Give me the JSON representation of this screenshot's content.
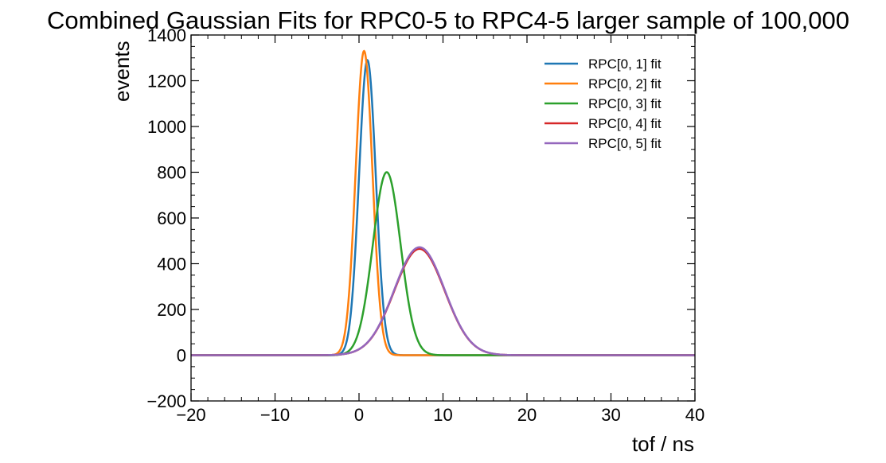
{
  "chart_data": {
    "type": "line",
    "title": "Combined Gaussian Fits for RPC0-5 to RPC4-5 larger sample of 100,000",
    "xlabel": "tof / ns",
    "ylabel": "events",
    "xlim": [
      -20,
      40
    ],
    "ylim": [
      -200,
      1400
    ],
    "x_ticks": [
      "−20",
      "−10",
      "0",
      "10",
      "20",
      "30",
      "40"
    ],
    "y_ticks": [
      "−200",
      "0",
      "200",
      "400",
      "600",
      "800",
      "1000",
      "1200",
      "1400"
    ],
    "grid": false,
    "legend_position": "top-right",
    "series": [
      {
        "name": "RPC[0, 1] fit",
        "color": "#1f77b4",
        "amplitude": 1290,
        "mean": 1.0,
        "sigma": 1.0
      },
      {
        "name": "RPC[0, 2] fit",
        "color": "#ff7f0e",
        "amplitude": 1330,
        "mean": 0.6,
        "sigma": 1.0
      },
      {
        "name": "RPC[0, 3] fit",
        "color": "#2ca02c",
        "amplitude": 800,
        "mean": 3.3,
        "sigma": 1.65
      },
      {
        "name": "RPC[0, 4] fit",
        "color": "#d62728",
        "amplitude": 465,
        "mean": 7.2,
        "sigma": 3.0
      },
      {
        "name": "RPC[0, 5] fit",
        "color": "#9467bd",
        "amplitude": 472,
        "mean": 7.2,
        "sigma": 3.0
      }
    ]
  }
}
